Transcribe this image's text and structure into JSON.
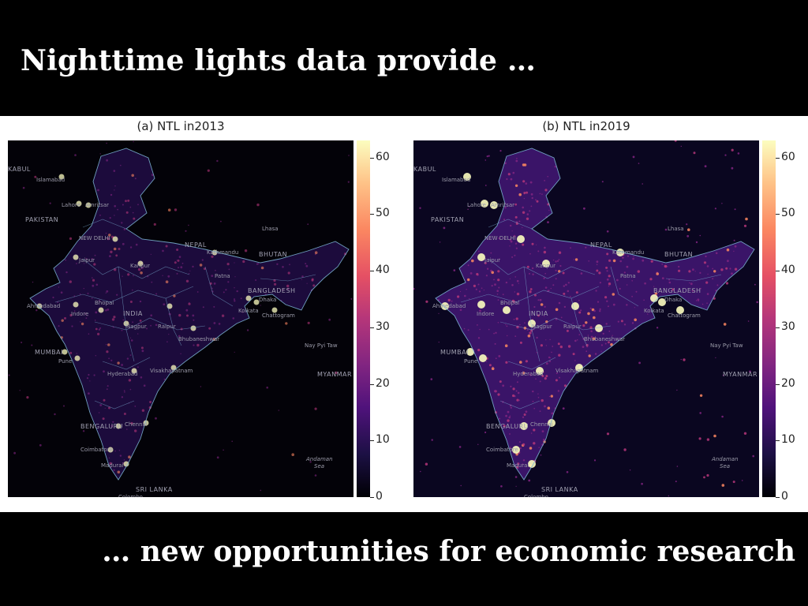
{
  "slide": {
    "title": "Nighttime lights data provide …",
    "subtitle": "… new opportunities for economic research"
  },
  "figure": {
    "panels": [
      {
        "id": "a",
        "title": "(a) NTL in2013",
        "year": 2013
      },
      {
        "id": "b",
        "title": "(b) NTL in2019",
        "year": 2019
      }
    ],
    "colorbar": {
      "colormap": "magma",
      "ticks": [
        "0",
        "10",
        "20",
        "30",
        "40",
        "50",
        "60"
      ],
      "min": 0,
      "max": 63
    },
    "map_labels": {
      "countries": [
        "PAKISTAN",
        "NEPAL",
        "BHUTAN",
        "BANGLADESH",
        "INDIA",
        "MYANMAR",
        "SRI LANKA"
      ],
      "cities": [
        "Islamabad",
        "Lahore",
        "Amritsar",
        "NEW DELHI",
        "Jaipur",
        "Kanpur",
        "Lhasa",
        "Kathmandu",
        "Patna",
        "Ahmedabad",
        "Bhopal",
        "Indore",
        "Nagpur",
        "Kolkata",
        "Dhaka",
        "Chattogram",
        "Raipur",
        "Bhubaneshwar",
        "Nay Pyi Taw",
        "MUMBAI",
        "Pune",
        "Hyderabad",
        "Visakhapatnam",
        "BENGALURU",
        "Chennai",
        "Coimbatore",
        "Madurai",
        "Colombo",
        "Andaman Sea",
        "KABUL"
      ]
    }
  },
  "colors": {
    "background": "#000000",
    "headline_text": "#ffffff",
    "border_lines": "#7fb8d8"
  }
}
